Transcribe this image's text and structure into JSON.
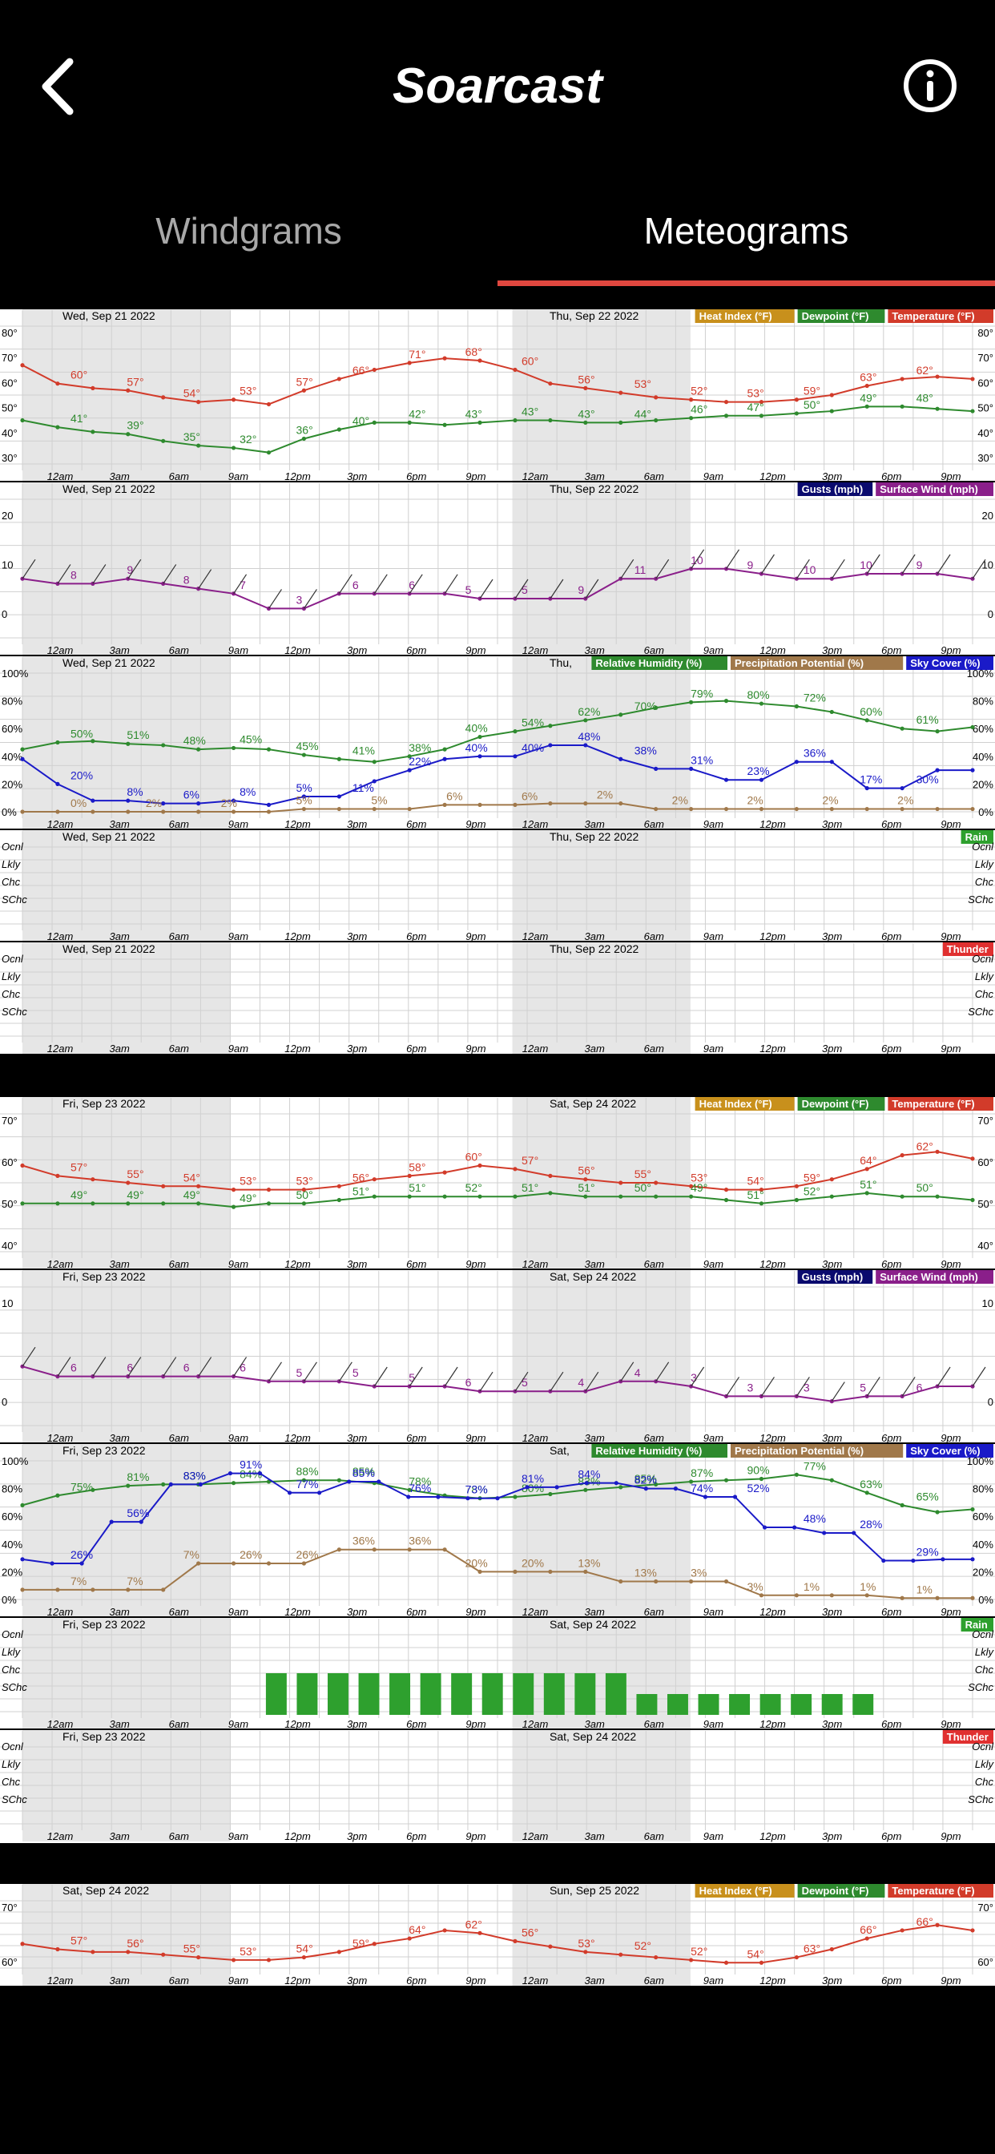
{
  "header": {
    "title": "Soarcast",
    "back_icon": "chevron-left-icon",
    "info_icon": "info-circle-icon"
  },
  "tabs": [
    {
      "label": "Windgrams",
      "active": false
    },
    {
      "label": "Meteograms",
      "active": true
    }
  ],
  "colors": {
    "accent_underline": "#e0473f",
    "heat_index": "#c8901c",
    "dewpoint": "#2e8a2e",
    "temperature": "#d23b2a",
    "gusts": "#0a0a6e",
    "surface_wind": "#8a1f8a",
    "relative_humidity": "#2e8a2e",
    "precip_potential": "#a0784a",
    "sky_cover": "#1a1ac8",
    "rain": "#2ea02e",
    "thunder": "#e03030"
  },
  "time_ticks": [
    "12am",
    "3am",
    "6am",
    "9am",
    "12pm",
    "3pm",
    "6pm",
    "9pm",
    "12am",
    "3am",
    "6am",
    "9am",
    "12pm",
    "3pm",
    "6pm",
    "9pm"
  ],
  "panel_titles": {
    "temp": [
      "Heat Index (°F)",
      "Dewpoint (°F)",
      "Temperature (°F)"
    ],
    "wind": [
      "Gusts (mph)",
      "Surface Wind (mph)"
    ],
    "hum": [
      "Relative Humidity (%)",
      "Precipitation Potential (%)",
      "Sky Cover (%)"
    ],
    "rain": "Rain",
    "thunder": "Thunder"
  },
  "category_labels": [
    "Ocnl",
    "Lkly",
    "Chc",
    "SChc"
  ],
  "meteograms": [
    {
      "day1": "Wed, Sep 21 2022",
      "day2": "Thu, Sep 22 2022",
      "day2_short": "Thu,",
      "temp_ylabels": [
        "80°",
        "70°",
        "60°",
        "50°",
        "40°",
        "30°"
      ],
      "temp_ylim": [
        25,
        85
      ],
      "wind_ylabels": [
        "20",
        "10",
        "0"
      ],
      "hum_ylabels": [
        "100%",
        "80%",
        "60%",
        "40%",
        "20%",
        "0%"
      ],
      "chart_data": {
        "type": "line",
        "x_labels": [
          "12am",
          "3am",
          "6am",
          "9am",
          "12pm",
          "3pm",
          "6pm",
          "9pm",
          "12am",
          "3am",
          "6am",
          "9am",
          "12pm",
          "3pm",
          "6pm",
          "9pm"
        ],
        "temperature": [
          68,
          60,
          58,
          57,
          54,
          52,
          53,
          51,
          57,
          62,
          66,
          69,
          71,
          70,
          66,
          60,
          58,
          56,
          54,
          53,
          52,
          52,
          53,
          55,
          59,
          62,
          63,
          62
        ],
        "temperature_labels": [
          "60°",
          "57°",
          "54°",
          "53°",
          "57°",
          "66°",
          "71°",
          "68°",
          "60°",
          "56°",
          "53°",
          "52°",
          "53°",
          "59°",
          "63°",
          "62°"
        ],
        "dewpoint": [
          44,
          41,
          39,
          38,
          35,
          33,
          32,
          30,
          36,
          40,
          43,
          43,
          42,
          43,
          44,
          44,
          43,
          43,
          44,
          45,
          46,
          46,
          47,
          48,
          50,
          50,
          49,
          48
        ],
        "dewpoint_labels": [
          "41°",
          "39°",
          "35°",
          "32°",
          "36°",
          "40°",
          "42°",
          "43°",
          "43°",
          "43°",
          "44°",
          "46°",
          "47°",
          "50°",
          "49°",
          "48°"
        ],
        "surface_wind": [
          9,
          8,
          8,
          9,
          8,
          7,
          6,
          3,
          3,
          6,
          6,
          6,
          6,
          5,
          5,
          5,
          5,
          9,
          9,
          11,
          11,
          10,
          9,
          9,
          10,
          10,
          10,
          9
        ],
        "surface_wind_labels": [
          "8",
          "9",
          "8",
          "7",
          "3",
          "6",
          "6",
          "5",
          "5",
          "9",
          "11",
          "10",
          "9",
          "10",
          "10",
          "9"
        ],
        "gusts": [],
        "relative_humidity": [
          45,
          50,
          51,
          49,
          48,
          45,
          46,
          45,
          41,
          38,
          36,
          40,
          45,
          54,
          58,
          62,
          66,
          70,
          75,
          79,
          80,
          78,
          76,
          72,
          66,
          60,
          58,
          61
        ],
        "relative_humidity_labels": [
          "50%",
          "51%",
          "48%",
          "45%",
          "45%",
          "41%",
          "38%",
          "40%",
          "54%",
          "62%",
          "70%",
          "79%",
          "80%",
          "72%",
          "60%",
          "61%"
        ],
        "sky_cover": [
          38,
          20,
          8,
          8,
          6,
          6,
          8,
          5,
          11,
          11,
          22,
          30,
          38,
          40,
          40,
          48,
          48,
          38,
          31,
          31,
          23,
          23,
          36,
          36,
          17,
          17,
          30,
          30
        ],
        "sky_cover_labels": [
          "20%",
          "8%",
          "6%",
          "8%",
          "5%",
          "11%",
          "22%",
          "40%",
          "40%",
          "48%",
          "38%",
          "31%",
          "23%",
          "36%",
          "17%",
          "30%"
        ],
        "precip_potential": [
          0,
          0,
          0,
          0,
          0,
          0,
          0,
          0,
          2,
          2,
          2,
          2,
          5,
          5,
          5,
          6,
          6,
          6,
          2,
          2,
          2,
          2,
          2,
          2,
          2,
          2,
          2,
          2
        ],
        "precip_potential_labels": [
          "0%",
          "2%",
          "2%",
          "5%",
          "5%",
          "6%",
          "6%",
          "2%",
          "2%",
          "2%",
          "2%",
          "2%"
        ],
        "rain": [],
        "thunder": []
      }
    },
    {
      "day1": "Fri, Sep 23 2022",
      "day2": "Sat, Sep 24 2022",
      "day2_short": "Sat,",
      "temp_ylabels": [
        "70°",
        "60°",
        "50°",
        "40°"
      ],
      "temp_ylim": [
        35,
        75
      ],
      "wind_ylabels": [
        "10",
        "0"
      ],
      "hum_ylabels": [
        "100%",
        "80%",
        "60%",
        "40%",
        "20%",
        "0%"
      ],
      "chart_data": {
        "type": "line",
        "x_labels": [
          "12am",
          "3am",
          "6am",
          "9am",
          "12pm",
          "3pm",
          "6pm",
          "9pm",
          "12am",
          "3am",
          "6am",
          "9am",
          "12pm",
          "3pm",
          "6pm",
          "9pm"
        ],
        "temperature": [
          60,
          57,
          56,
          55,
          54,
          54,
          53,
          53,
          53,
          54,
          56,
          57,
          58,
          60,
          59,
          57,
          56,
          55,
          55,
          54,
          53,
          53,
          54,
          56,
          59,
          63,
          64,
          62
        ],
        "temperature_labels": [
          "57°",
          "55°",
          "54°",
          "53°",
          "53°",
          "56°",
          "58°",
          "60°",
          "57°",
          "56°",
          "55°",
          "53°",
          "54°",
          "59°",
          "64°",
          "62°"
        ],
        "dewpoint": [
          49,
          49,
          49,
          49,
          49,
          49,
          48,
          49,
          49,
          50,
          51,
          51,
          51,
          51,
          51,
          52,
          51,
          51,
          51,
          51,
          50,
          49,
          50,
          51,
          52,
          51,
          51,
          50
        ],
        "dewpoint_labels": [
          "49°",
          "49°",
          "49°",
          "49°",
          "50°",
          "51°",
          "51°",
          "52°",
          "51°",
          "51°",
          "50°",
          "49°",
          "51°",
          "52°",
          "51°",
          "50°"
        ],
        "surface_wind": [
          9,
          7,
          7,
          7,
          7,
          7,
          7,
          6,
          6,
          6,
          5,
          5,
          5,
          4,
          4,
          4,
          4,
          6,
          6,
          5,
          3,
          3,
          3,
          2,
          3,
          3,
          5,
          5
        ],
        "surface_wind_labels": [
          "6",
          "6",
          "6",
          "6",
          "5",
          "5",
          "5",
          "6",
          "5",
          "4",
          "4",
          "3",
          "3",
          "3",
          "5",
          "6"
        ],
        "gusts": [],
        "relative_humidity": [
          68,
          75,
          79,
          82,
          83,
          83,
          84,
          85,
          86,
          86,
          84,
          79,
          75,
          73,
          74,
          76,
          79,
          81,
          83,
          85,
          86,
          87,
          90,
          86,
          77,
          68,
          63,
          65
        ],
        "relative_humidity_labels": [
          "75%",
          "81%",
          "83%",
          "84%",
          "88%",
          "85%",
          "78%",
          "78%",
          "80%",
          "83%",
          "85%",
          "87%",
          "90%",
          "77%",
          "63%",
          "65%"
        ],
        "sky_cover": [
          29,
          26,
          26,
          56,
          56,
          83,
          83,
          91,
          91,
          77,
          77,
          85,
          85,
          74,
          74,
          73,
          73,
          81,
          81,
          84,
          84,
          80,
          80,
          74,
          74,
          52,
          52,
          48,
          48,
          28,
          28,
          29,
          29
        ],
        "sky_cover_labels": [
          "26%",
          "56%",
          "83%",
          "91%",
          "77%",
          "85%",
          "76%",
          "73%",
          "81%",
          "84%",
          "82%",
          "74%",
          "52%",
          "48%",
          "28%",
          "29%"
        ],
        "precip_potential": [
          7,
          7,
          7,
          7,
          7,
          26,
          26,
          26,
          26,
          36,
          36,
          36,
          36,
          20,
          20,
          20,
          20,
          13,
          13,
          13,
          13,
          3,
          3,
          3,
          3,
          1,
          1,
          1
        ],
        "precip_potential_labels": [
          "7%",
          "7%",
          "7%",
          "26%",
          "26%",
          "36%",
          "36%",
          "20%",
          "20%",
          "13%",
          "13%",
          "3%",
          "3%",
          "1%",
          "1%",
          "1%"
        ],
        "rain": [
          "SChc",
          "SChc",
          "SChc",
          "SChc",
          "SChc",
          "SChc",
          "SChc",
          "SChc",
          "SChc",
          "SChc",
          "SChc",
          "SChc",
          "SChc",
          "SChc",
          "SChc",
          "SChc",
          "SChc",
          "SChc",
          "SChc",
          "SChc"
        ],
        "thunder": []
      }
    },
    {
      "day1": "Sat, Sep 24 2022",
      "day2": "Sun, Sep 25 2022",
      "temp_ylabels": [
        "70°",
        "60°"
      ],
      "chart_data": {
        "type": "line",
        "temperature": [
          59,
          57,
          56,
          56,
          55,
          54,
          53,
          53,
          54,
          56,
          59,
          61,
          64,
          63,
          60,
          58,
          56,
          55,
          54,
          53,
          52,
          52,
          54,
          57,
          61,
          64,
          66,
          64
        ],
        "temperature_labels": [
          "57°",
          "56°",
          "55°",
          "53°",
          "54°",
          "59°",
          "64°",
          "62°",
          "56°",
          "53°",
          "52°",
          "52°",
          "54°",
          "63°",
          "66°",
          "66°"
        ]
      }
    }
  ]
}
